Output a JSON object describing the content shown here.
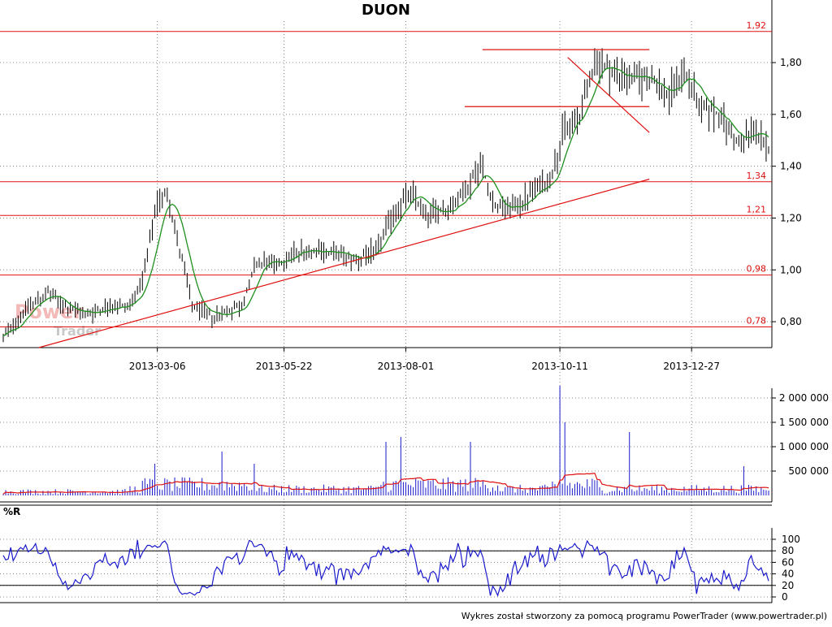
{
  "app": {
    "footer_text": "Wykres został stworzony za pomocą programu PowerTrader (www.powertrader.pl)",
    "watermark_line1": "Power",
    "watermark_line2": "Trader"
  },
  "colors": {
    "grid": "#888888",
    "level_line": "#e01010",
    "ma_line": "#1f8f1f",
    "volume_bar": "#1a1acc",
    "volume_ma": "#e01010",
    "williams_line": "#1a1acc",
    "price_bar": "#000000"
  },
  "chart_data": [
    {
      "type": "ohlc",
      "title": "DUON",
      "x_labels": [
        "2013-03-06",
        "2013-05-22",
        "2013-08-01",
        "2013-10-11",
        "2013-12-27"
      ],
      "y_ticks": [
        "0,80",
        "1,00",
        "1,20",
        "1,40",
        "1,60",
        "1,80"
      ],
      "ylim": [
        0.7,
        1.96
      ],
      "horizontal_levels": [
        {
          "value": 1.92,
          "label": "1,92"
        },
        {
          "value": 1.34,
          "label": "1,34"
        },
        {
          "value": 1.21,
          "label": "1,21"
        },
        {
          "value": 0.98,
          "label": "0,98"
        },
        {
          "value": 0.78,
          "label": "0,78"
        }
      ],
      "trend_lines": [
        {
          "name": "support",
          "from": {
            "date": "2013-02-10",
            "value": 0.7
          },
          "to": {
            "date": "2014-01-20",
            "value": 1.35
          }
        },
        {
          "name": "resistance-top",
          "from": {
            "date": "2013-10-18",
            "value": 1.85
          },
          "to": {
            "date": "2014-01-20",
            "value": 1.85
          }
        },
        {
          "name": "resistance-mid",
          "from": {
            "date": "2013-10-08",
            "value": 1.63
          },
          "to": {
            "date": "2014-01-20",
            "value": 1.63
          }
        },
        {
          "name": "downtrend",
          "from": {
            "date": "2013-12-05",
            "value": 1.82
          },
          "to": {
            "date": "2014-01-20",
            "value": 1.53
          }
        }
      ],
      "price_keypoints": [
        {
          "t": 0,
          "v": 0.74
        },
        {
          "t": 10,
          "v": 0.86
        },
        {
          "t": 18,
          "v": 0.91
        },
        {
          "t": 26,
          "v": 0.85
        },
        {
          "t": 34,
          "v": 0.83
        },
        {
          "t": 42,
          "v": 0.86
        },
        {
          "t": 50,
          "v": 0.86
        },
        {
          "t": 56,
          "v": 0.95
        },
        {
          "t": 62,
          "v": 1.26
        },
        {
          "t": 66,
          "v": 1.3
        },
        {
          "t": 70,
          "v": 1.12
        },
        {
          "t": 76,
          "v": 0.86
        },
        {
          "t": 84,
          "v": 0.82
        },
        {
          "t": 90,
          "v": 0.84
        },
        {
          "t": 96,
          "v": 0.86
        },
        {
          "t": 102,
          "v": 1.03
        },
        {
          "t": 110,
          "v": 1.02
        },
        {
          "t": 118,
          "v": 1.07
        },
        {
          "t": 126,
          "v": 1.08
        },
        {
          "t": 134,
          "v": 1.06
        },
        {
          "t": 142,
          "v": 1.04
        },
        {
          "t": 150,
          "v": 1.07
        },
        {
          "t": 156,
          "v": 1.2
        },
        {
          "t": 164,
          "v": 1.3
        },
        {
          "t": 170,
          "v": 1.22
        },
        {
          "t": 178,
          "v": 1.23
        },
        {
          "t": 186,
          "v": 1.3
        },
        {
          "t": 192,
          "v": 1.41
        },
        {
          "t": 198,
          "v": 1.24
        },
        {
          "t": 206,
          "v": 1.24
        },
        {
          "t": 214,
          "v": 1.31
        },
        {
          "t": 220,
          "v": 1.35
        },
        {
          "t": 226,
          "v": 1.55
        },
        {
          "t": 232,
          "v": 1.59
        },
        {
          "t": 238,
          "v": 1.81
        },
        {
          "t": 244,
          "v": 1.77
        },
        {
          "t": 252,
          "v": 1.74
        },
        {
          "t": 260,
          "v": 1.74
        },
        {
          "t": 268,
          "v": 1.67
        },
        {
          "t": 274,
          "v": 1.78
        },
        {
          "t": 280,
          "v": 1.63
        },
        {
          "t": 288,
          "v": 1.6
        },
        {
          "t": 296,
          "v": 1.48
        },
        {
          "t": 302,
          "v": 1.55
        },
        {
          "t": 308,
          "v": 1.45
        }
      ]
    },
    {
      "type": "bar",
      "y_ticks": [
        "500 000",
        "1 000 000",
        "1 500 000",
        "2 000 000"
      ],
      "ylim": [
        0,
        2200000
      ],
      "peaks": [
        {
          "t": 61,
          "value": 650000
        },
        {
          "t": 88,
          "value": 900000
        },
        {
          "t": 101,
          "value": 650000
        },
        {
          "t": 154,
          "value": 1100000
        },
        {
          "t": 160,
          "value": 1200000
        },
        {
          "t": 188,
          "value": 1100000
        },
        {
          "t": 224,
          "value": 2250000
        },
        {
          "t": 226,
          "value": 1500000
        },
        {
          "t": 252,
          "value": 1300000
        },
        {
          "t": 298,
          "value": 600000
        }
      ]
    },
    {
      "type": "line",
      "title": "%R",
      "y_ticks": [
        "0",
        "20",
        "40",
        "60",
        "80",
        "100"
      ],
      "ylim": [
        0,
        100
      ],
      "reference_levels": [
        20,
        80
      ]
    }
  ]
}
